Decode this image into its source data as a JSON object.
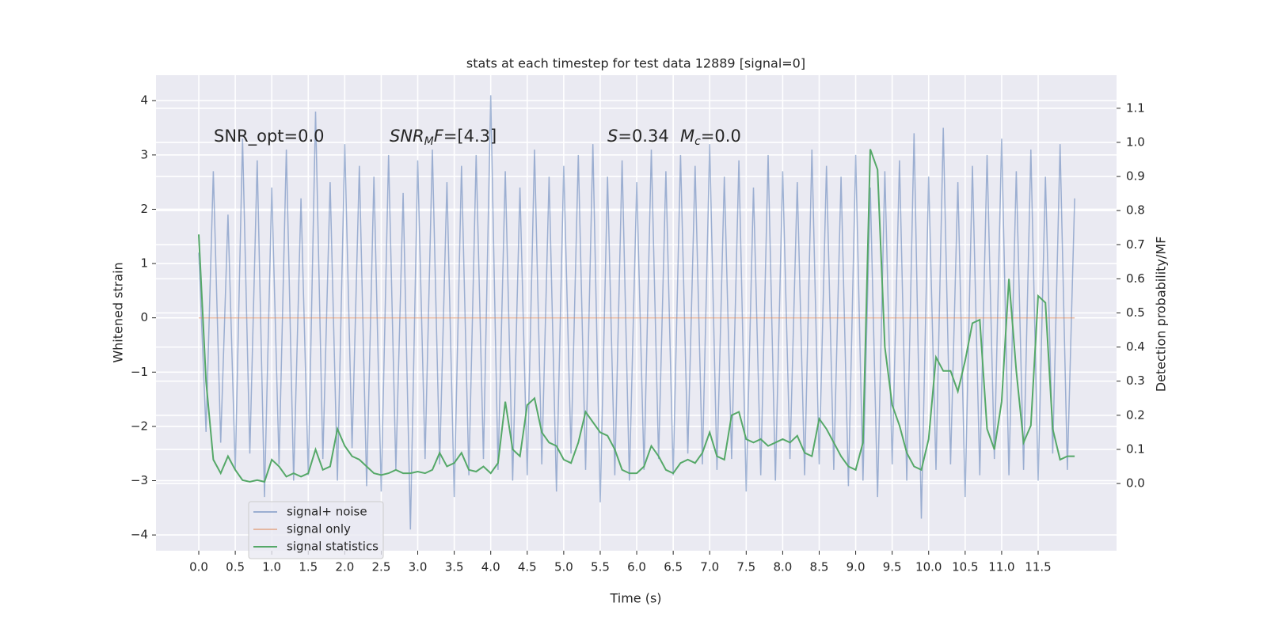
{
  "chart_data": {
    "type": "line",
    "title": "stats at each timestep for test data 12889 [signal=0]",
    "x_label": "Time (s)",
    "y_label": "Whitened strain",
    "y2_label": "Detection probability/MF",
    "annotations": [
      {
        "base": "SNR_opt=0.0"
      },
      {
        "base": "SNR",
        "sub": "M",
        "rest": "F=[4.3]"
      },
      {
        "base": "S",
        "rest": "=0.34"
      },
      {
        "base": "M",
        "sub": "c",
        "rest": "=0.0"
      }
    ],
    "xlim": [
      -0.586,
      12.574
    ],
    "ylim": [
      -4.29,
      4.47
    ],
    "y2lim": [
      -0.197,
      1.197
    ],
    "xticks": [
      {
        "value": 0,
        "label": "0.0"
      },
      {
        "value": 0.5,
        "label": "0.5"
      },
      {
        "value": 1,
        "label": "1.0"
      },
      {
        "value": 1.5,
        "label": "1.5"
      },
      {
        "value": 2,
        "label": "2.0"
      },
      {
        "value": 2.5,
        "label": "2.5"
      },
      {
        "value": 3,
        "label": "3.0"
      },
      {
        "value": 3.5,
        "label": "3.5"
      },
      {
        "value": 4,
        "label": "4.0"
      },
      {
        "value": 4.5,
        "label": "4.5"
      },
      {
        "value": 5,
        "label": "5.0"
      },
      {
        "value": 5.5,
        "label": "5.5"
      },
      {
        "value": 6,
        "label": "6.0"
      },
      {
        "value": 6.5,
        "label": "6.5"
      },
      {
        "value": 7,
        "label": "7.0"
      },
      {
        "value": 7.5,
        "label": "7.5"
      },
      {
        "value": 8,
        "label": "8.0"
      },
      {
        "value": 8.5,
        "label": "8.5"
      },
      {
        "value": 9,
        "label": "9.0"
      },
      {
        "value": 9.5,
        "label": "9.5"
      },
      {
        "value": 10,
        "label": "10.0"
      },
      {
        "value": 10.5,
        "label": "10.5"
      },
      {
        "value": 11,
        "label": "11.0"
      },
      {
        "value": 11.5,
        "label": "11.5"
      }
    ],
    "yticks": [
      {
        "value": -4,
        "label": "−4"
      },
      {
        "value": -3,
        "label": "−3"
      },
      {
        "value": -2,
        "label": "−2"
      },
      {
        "value": -1,
        "label": "−1"
      },
      0,
      1,
      2,
      3,
      4
    ],
    "y2ticks": [
      {
        "value": 0,
        "label": "0.0"
      },
      {
        "value": 0.1,
        "label": "0.1"
      },
      {
        "value": 0.2,
        "label": "0.2"
      },
      {
        "value": 0.3,
        "label": "0.3"
      },
      {
        "value": 0.4,
        "label": "0.4"
      },
      {
        "value": 0.5,
        "label": "0.5"
      },
      {
        "value": 0.6,
        "label": "0.6"
      },
      {
        "value": 0.7,
        "label": "0.7"
      },
      {
        "value": 0.8,
        "label": "0.8"
      },
      {
        "value": 0.9,
        "label": "0.9"
      },
      {
        "value": 1,
        "label": "1.0"
      },
      {
        "value": 1.1,
        "label": "1.1"
      }
    ],
    "grid": true,
    "legend": "lower left",
    "x": [
      0,
      0.1,
      0.2,
      0.3,
      0.4,
      0.5,
      0.6,
      0.7,
      0.8,
      0.9,
      1,
      1.1,
      1.2,
      1.3,
      1.4,
      1.5,
      1.6,
      1.7,
      1.8,
      1.9,
      2,
      2.1,
      2.2,
      2.3,
      2.4,
      2.5,
      2.6,
      2.7,
      2.8,
      2.9,
      3,
      3.1,
      3.2,
      3.3,
      3.4,
      3.5,
      3.6,
      3.7,
      3.8,
      3.9,
      4,
      4.1,
      4.2,
      4.3,
      4.4,
      4.5,
      4.6,
      4.7,
      4.8,
      4.9,
      5,
      5.1,
      5.2,
      5.3,
      5.4,
      5.5,
      5.6,
      5.7,
      5.8,
      5.9,
      6,
      6.1,
      6.2,
      6.3,
      6.4,
      6.5,
      6.6,
      6.7,
      6.8,
      6.9,
      7,
      7.1,
      7.2,
      7.3,
      7.4,
      7.5,
      7.6,
      7.7,
      7.8,
      7.9,
      8,
      8.1,
      8.2,
      8.3,
      8.4,
      8.5,
      8.6,
      8.7,
      8.8,
      8.9,
      9,
      9.1,
      9.2,
      9.3,
      9.4,
      9.5,
      9.6,
      9.7,
      9.8,
      9.9,
      10,
      10.1,
      10.2,
      10.3,
      10.4,
      10.5,
      10.6,
      10.7,
      10.8,
      10.9,
      11,
      11.1,
      11.2,
      11.3,
      11.4,
      11.5,
      11.6,
      11.7,
      11.8,
      11.9,
      12
    ],
    "series": [
      {
        "name": "signal+ noise",
        "color": "#4c72b0",
        "opacity": 0.5,
        "values": [
          1.2,
          -2.1,
          2.7,
          -2.3,
          1.9,
          -2.8,
          3.3,
          -2.5,
          2.9,
          -3.3,
          2.4,
          -2.7,
          3.1,
          -3.0,
          2.2,
          -2.9,
          3.8,
          -2.6,
          2.5,
          -3.0,
          3.2,
          -2.4,
          2.8,
          -3.1,
          2.6,
          -3.2,
          3.0,
          -2.8,
          2.3,
          -3.9,
          2.9,
          -2.6,
          3.1,
          -2.7,
          2.5,
          -3.3,
          2.8,
          -2.9,
          3.0,
          -2.6,
          4.1,
          -2.8,
          2.7,
          -3.0,
          2.4,
          -2.9,
          3.1,
          -2.7,
          2.6,
          -3.2,
          2.8,
          -2.5,
          3.0,
          -2.8,
          3.2,
          -3.4,
          2.6,
          -2.9,
          2.9,
          -3.0,
          2.5,
          -2.8,
          3.1,
          -2.6,
          2.7,
          -2.9,
          3.0,
          -2.5,
          2.8,
          -2.7,
          3.2,
          -2.8,
          2.6,
          -2.6,
          2.9,
          -3.2,
          2.4,
          -2.9,
          3.0,
          -3.0,
          2.7,
          -2.6,
          2.5,
          -2.9,
          3.1,
          -2.7,
          2.8,
          -2.8,
          2.6,
          -3.1,
          3.0,
          -3.0,
          2.4,
          -3.3,
          2.7,
          -2.7,
          2.9,
          -3.0,
          3.4,
          -3.7,
          2.6,
          -2.8,
          3.5,
          -2.7,
          2.5,
          -3.3,
          2.8,
          -2.9,
          3.0,
          -2.6,
          3.3,
          -2.9,
          2.7,
          -2.8,
          3.1,
          -3.0,
          2.6,
          -2.5,
          3.2,
          -2.8,
          2.2
        ]
      },
      {
        "name": "signal only",
        "color": "#dd8452",
        "opacity": 0.5,
        "x": [
          0,
          12
        ],
        "values": [
          0,
          0
        ]
      },
      {
        "name": "signal statistics",
        "color": "#55a868",
        "opacity": 1,
        "axis": "y2",
        "values": [
          0.73,
          0.3,
          0.07,
          0.03,
          0.08,
          0.04,
          0.01,
          0.005,
          0.01,
          0.005,
          0.07,
          0.05,
          0.02,
          0.03,
          0.02,
          0.03,
          0.1,
          0.04,
          0.05,
          0.16,
          0.11,
          0.08,
          0.07,
          0.05,
          0.03,
          0.025,
          0.03,
          0.04,
          0.03,
          0.03,
          0.035,
          0.03,
          0.04,
          0.09,
          0.05,
          0.06,
          0.09,
          0.04,
          0.035,
          0.05,
          0.03,
          0.06,
          0.24,
          0.1,
          0.08,
          0.23,
          0.25,
          0.15,
          0.12,
          0.11,
          0.07,
          0.06,
          0.12,
          0.21,
          0.18,
          0.15,
          0.14,
          0.1,
          0.04,
          0.03,
          0.03,
          0.05,
          0.11,
          0.08,
          0.04,
          0.03,
          0.06,
          0.07,
          0.06,
          0.09,
          0.15,
          0.08,
          0.07,
          0.2,
          0.21,
          0.13,
          0.12,
          0.13,
          0.11,
          0.12,
          0.13,
          0.12,
          0.14,
          0.09,
          0.08,
          0.19,
          0.16,
          0.12,
          0.08,
          0.05,
          0.04,
          0.12,
          0.98,
          0.92,
          0.4,
          0.23,
          0.17,
          0.09,
          0.05,
          0.04,
          0.13,
          0.37,
          0.33,
          0.33,
          0.27,
          0.36,
          0.47,
          0.48,
          0.16,
          0.1,
          0.24,
          0.6,
          0.33,
          0.12,
          0.17,
          0.55,
          0.53,
          0.16,
          0.07,
          0.08,
          0.08
        ]
      }
    ]
  }
}
